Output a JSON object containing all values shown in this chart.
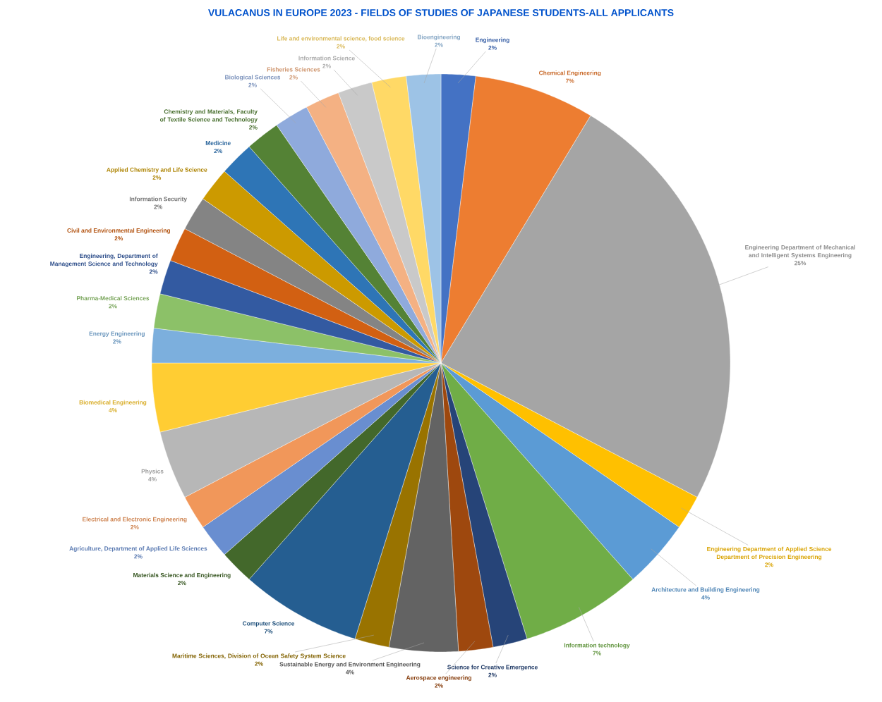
{
  "chart_data": {
    "type": "pie",
    "title": "VULACANUS IN EUROPE 2023 - FIELDS OF STUDIES OF JAPANESE STUDENTS-ALL APPLICANTS",
    "categories": [
      "Engineering",
      "Chemical Engineering",
      "Engineering Department of Mechanical and Intelligent Systems Engineering",
      "Engineering Department of Applied Science Department of Precision Engineering",
      "Architecture and Building Engineering",
      "Information technology",
      "Science for Creative Emergence",
      "Aerospace engineering",
      "Sustainable Energy and Environment Engineering",
      "Maritime Sciences, Division of Ocean Safety System Science",
      "Computer Science",
      "Materials Science and Engineering",
      "Agriculture, Department of Applied Life Sciences",
      "Electrical and Electronic Engineering",
      "Physics",
      "Biomedical Engineering",
      "Energy Engineering",
      "Pharma-Medical Sciences",
      "Engineering, Department of Management Science and Technology",
      "Civil and Environmental Engineering",
      "Information Security",
      "Applied Chemistry and Life Science",
      "Medicine",
      "Chemistry and Materials, Faculty of Textile Science and Technology",
      "Biological Sciences",
      "Fisheries Sciences",
      "Information Science",
      "Life and environmental science, food science",
      "Bioengineering"
    ],
    "values": [
      2,
      7,
      25,
      2,
      4,
      7,
      2,
      2,
      4,
      2,
      7,
      2,
      2,
      2,
      4,
      4,
      2,
      2,
      2,
      2,
      2,
      2,
      2,
      2,
      2,
      2,
      2,
      2,
      2
    ],
    "value_labels": [
      "2%",
      "7%",
      "25%",
      "2%",
      "4%",
      "7%",
      "2%",
      "2%",
      "4%",
      "2%",
      "7%",
      "2%",
      "2%",
      "2%",
      "4%",
      "4%",
      "2%",
      "2%",
      "2%",
      "2%",
      "2%",
      "2%",
      "2%",
      "2%",
      "2%",
      "2%",
      "2%",
      "2%",
      "2%"
    ],
    "colors": [
      "#4472c4",
      "#ed7d31",
      "#a5a5a5",
      "#ffc000",
      "#5b9bd5",
      "#70ad47",
      "#264478",
      "#9e480e",
      "#636363",
      "#997300",
      "#255e91",
      "#43682b",
      "#698ed0",
      "#f1975a",
      "#b7b7b7",
      "#ffcd33",
      "#7cafdd",
      "#8cc168",
      "#335aa1",
      "#d26012",
      "#848484",
      "#cc9a00",
      "#2e75b6",
      "#548235",
      "#8faadc",
      "#f4b183",
      "#c9c9c9",
      "#ffd966",
      "#9dc3e6"
    ]
  }
}
